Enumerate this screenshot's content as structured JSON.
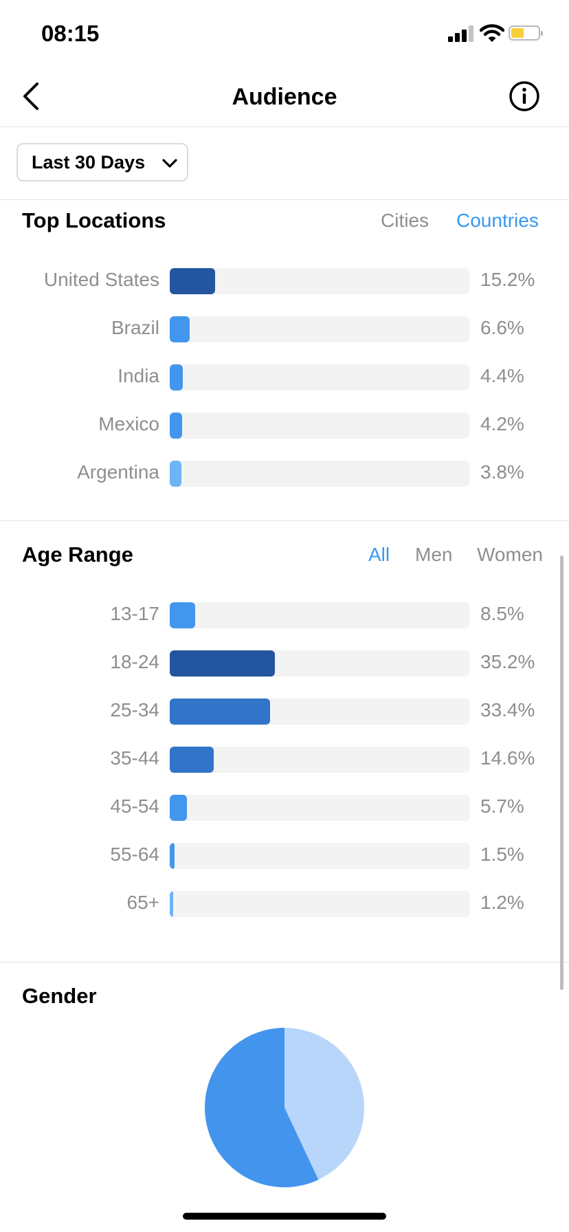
{
  "status_bar": {
    "time": "08:15"
  },
  "nav": {
    "title": "Audience"
  },
  "period": {
    "label": "Last 30 Days"
  },
  "top_locations": {
    "title": "Top Locations",
    "tabs": [
      {
        "label": "Cities",
        "active": false
      },
      {
        "label": "Countries",
        "active": true
      }
    ],
    "rows": [
      {
        "label": "United States",
        "value": "15.2%",
        "fraction": 0.152,
        "color": "#24569f"
      },
      {
        "label": "Brazil",
        "value": "6.6%",
        "fraction": 0.066,
        "color": "#4396ed"
      },
      {
        "label": "India",
        "value": "4.4%",
        "fraction": 0.044,
        "color": "#4396ed"
      },
      {
        "label": "Mexico",
        "value": "4.2%",
        "fraction": 0.042,
        "color": "#4396ed"
      },
      {
        "label": "Argentina",
        "value": "3.8%",
        "fraction": 0.038,
        "color": "#6eb3f5"
      }
    ]
  },
  "age_range": {
    "title": "Age Range",
    "tabs": [
      {
        "label": "All",
        "active": true
      },
      {
        "label": "Men",
        "active": false
      },
      {
        "label": "Women",
        "active": false
      }
    ],
    "rows": [
      {
        "label": "13-17",
        "value": "8.5%",
        "fraction": 0.085,
        "color": "#4396ed"
      },
      {
        "label": "18-24",
        "value": "35.2%",
        "fraction": 0.352,
        "color": "#24569f"
      },
      {
        "label": "25-34",
        "value": "33.4%",
        "fraction": 0.334,
        "color": "#3174c8"
      },
      {
        "label": "35-44",
        "value": "14.6%",
        "fraction": 0.146,
        "color": "#3174c8"
      },
      {
        "label": "45-54",
        "value": "5.7%",
        "fraction": 0.057,
        "color": "#4396ed"
      },
      {
        "label": "55-64",
        "value": "1.5%",
        "fraction": 0.015,
        "color": "#4396ed"
      },
      {
        "label": "65+",
        "value": "1.2%",
        "fraction": 0.012,
        "color": "#6eb3f5"
      }
    ]
  },
  "gender": {
    "title": "Gender",
    "slices": [
      {
        "fraction": 0.43,
        "color": "#b8d6fa"
      },
      {
        "fraction": 0.57,
        "color": "#4394ed"
      }
    ]
  },
  "colors": {
    "accent": "#3897f0",
    "muted_text": "#8e8e8e",
    "track": "#f3f3f3"
  }
}
